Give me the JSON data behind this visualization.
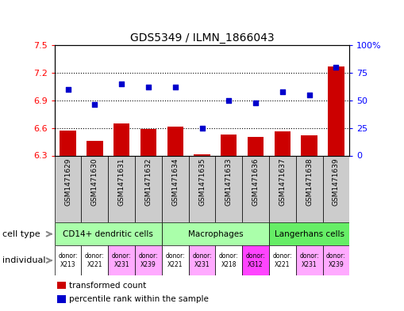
{
  "title": "GDS5349 / ILMN_1866043",
  "samples": [
    "GSM1471629",
    "GSM1471630",
    "GSM1471631",
    "GSM1471632",
    "GSM1471634",
    "GSM1471635",
    "GSM1471633",
    "GSM1471636",
    "GSM1471637",
    "GSM1471638",
    "GSM1471639"
  ],
  "transformed_count": [
    6.57,
    6.46,
    6.65,
    6.59,
    6.61,
    6.31,
    6.53,
    6.5,
    6.56,
    6.52,
    7.27
  ],
  "percentile_rank": [
    60,
    46,
    65,
    62,
    62,
    25,
    50,
    48,
    58,
    55,
    80
  ],
  "ylim_left": [
    6.3,
    7.5
  ],
  "ylim_right": [
    0,
    100
  ],
  "yticks_left": [
    6.3,
    6.6,
    6.9,
    7.2,
    7.5
  ],
  "yticks_right": [
    0,
    25,
    50,
    75,
    100
  ],
  "hlines": [
    6.6,
    6.9,
    7.2
  ],
  "bar_color": "#cc0000",
  "dot_color": "#0000cc",
  "xtick_bg": "#cccccc",
  "cell_groups": [
    {
      "label": "CD14+ dendritic cells",
      "start": 0,
      "end": 3,
      "color": "#aaffaa"
    },
    {
      "label": "Macrophages",
      "start": 4,
      "end": 7,
      "color": "#aaffaa"
    },
    {
      "label": "Langerhans cells",
      "start": 8,
      "end": 10,
      "color": "#66ee66"
    }
  ],
  "ind_labels": [
    "donor:\nX213",
    "donor:\nX221",
    "donor:\nX231",
    "donor:\nX239",
    "donor:\nX221",
    "donor:\nX231",
    "donor:\nX218",
    "donor:\nX312",
    "donor:\nX221",
    "donor:\nX231",
    "donor:\nX239"
  ],
  "ind_colors": [
    "#ffffff",
    "#ffffff",
    "#ffaaff",
    "#ffaaff",
    "#ffffff",
    "#ffaaff",
    "#ffffff",
    "#ff44ff",
    "#ffffff",
    "#ffaaff",
    "#ffaaff"
  ],
  "legend": [
    {
      "label": "transformed count",
      "color": "#cc0000"
    },
    {
      "label": "percentile rank within the sample",
      "color": "#0000cc"
    }
  ]
}
